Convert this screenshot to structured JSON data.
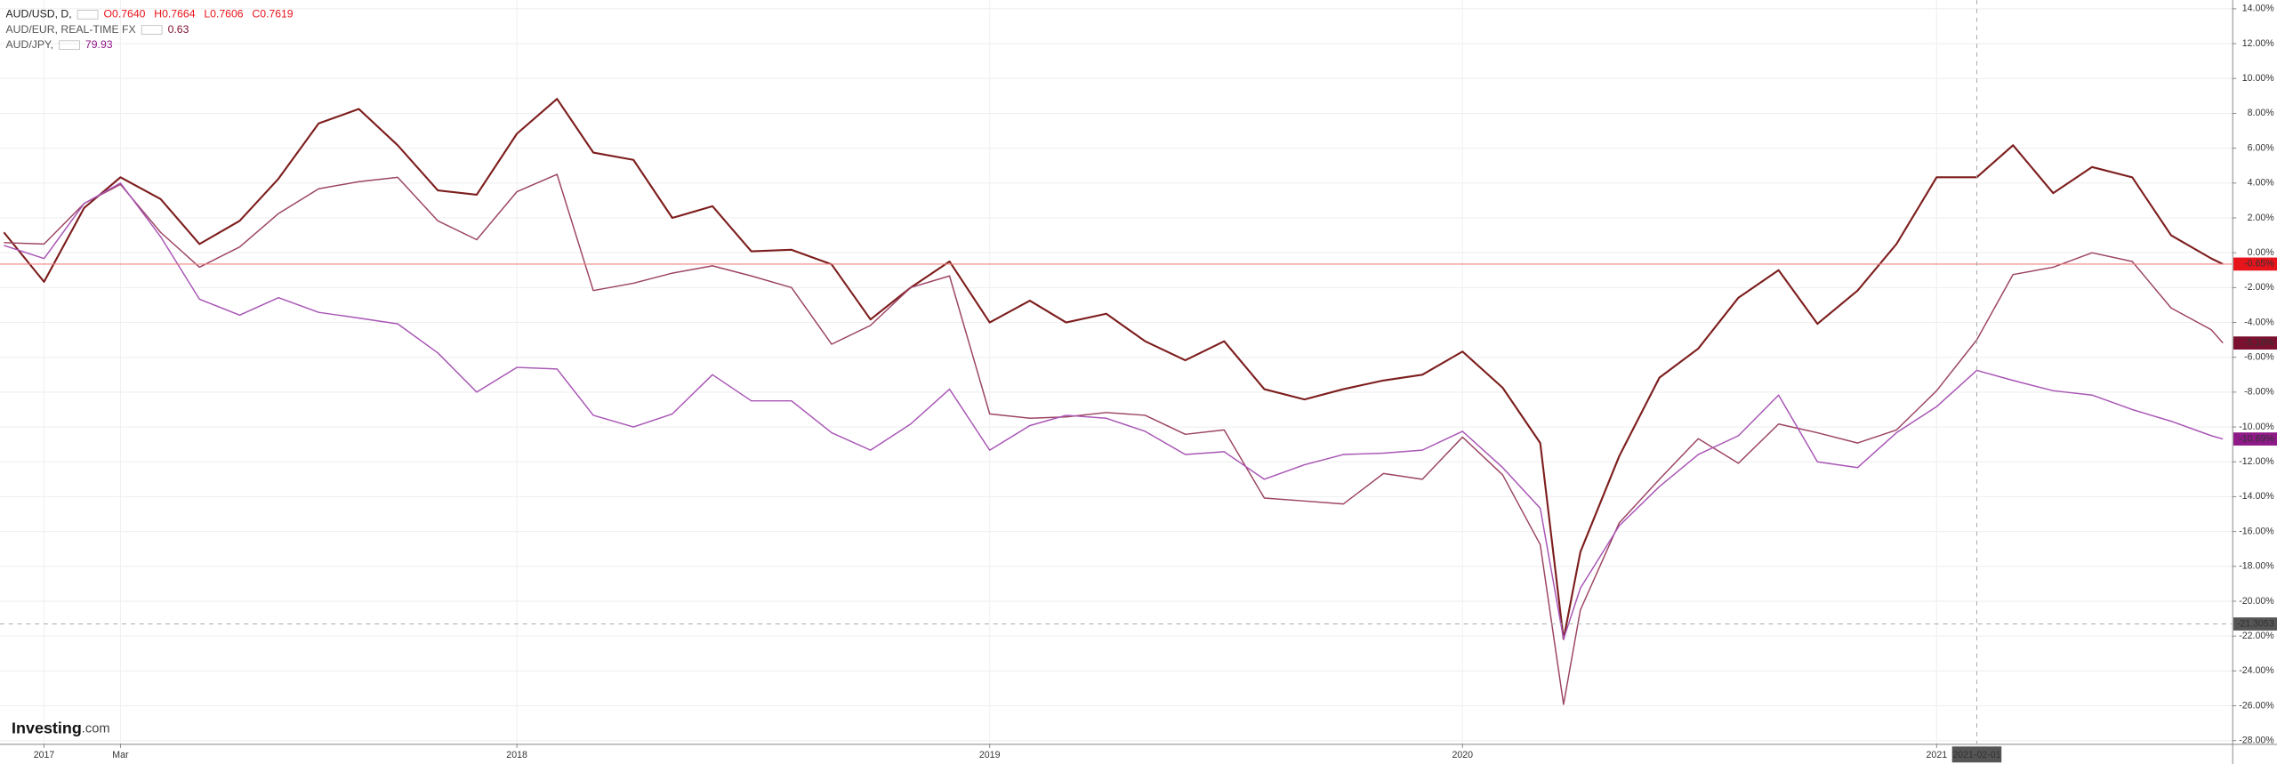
{
  "chart_data": {
    "type": "line",
    "x": [
      "2016-12-01",
      "2017-01-01",
      "2017-02-01",
      "2017-03-01",
      "2017-04-01",
      "2017-05-01",
      "2017-06-01",
      "2017-07-01",
      "2017-08-01",
      "2017-09-01",
      "2017-10-01",
      "2017-11-01",
      "2017-12-01",
      "2018-01-01",
      "2018-02-01",
      "2018-03-01",
      "2018-04-01",
      "2018-05-01",
      "2018-06-01",
      "2018-07-01",
      "2018-08-01",
      "2018-09-01",
      "2018-10-01",
      "2018-11-01",
      "2018-12-01",
      "2019-01-01",
      "2019-02-01",
      "2019-03-01",
      "2019-04-01",
      "2019-05-01",
      "2019-06-01",
      "2019-07-01",
      "2019-08-01",
      "2019-09-01",
      "2019-10-01",
      "2019-11-01",
      "2019-12-01",
      "2020-01-01",
      "2020-02-01",
      "2020-03-01",
      "2020-03-19",
      "2020-04-01",
      "2020-05-01",
      "2020-06-01",
      "2020-07-01",
      "2020-08-01",
      "2020-09-01",
      "2020-10-01",
      "2020-11-01",
      "2020-12-01",
      "2021-01-01",
      "2021-02-01",
      "2021-03-01",
      "2021-04-01",
      "2021-05-01",
      "2021-06-01",
      "2021-07-01",
      "2021-08-01",
      "2021-08-10"
    ],
    "xlim": [
      "2016-11-28",
      "2021-08-17"
    ],
    "xticks": [
      {
        "value": "2017-01-01",
        "label": "2017"
      },
      {
        "value": "2017-03-01",
        "label": "Mar"
      },
      {
        "value": "2018-01-01",
        "label": "2018"
      },
      {
        "value": "2019-01-01",
        "label": "2019"
      },
      {
        "value": "2020-01-01",
        "label": "2020"
      },
      {
        "value": "2021-01-01",
        "label": "2021"
      }
    ],
    "ylim": [
      -28.17,
      14.5
    ],
    "yticks": [
      {
        "value": 14,
        "label": "14.00%"
      },
      {
        "value": 12,
        "label": "12.00%"
      },
      {
        "value": 10,
        "label": "10.00%"
      },
      {
        "value": 8,
        "label": "8.00%"
      },
      {
        "value": 6,
        "label": "6.00%"
      },
      {
        "value": 4,
        "label": "4.00%"
      },
      {
        "value": 2,
        "label": "2.00%"
      },
      {
        "value": 0,
        "label": "0.00%"
      },
      {
        "value": -2,
        "label": "-2.00%"
      },
      {
        "value": -4,
        "label": "-4.00%"
      },
      {
        "value": -6,
        "label": "-6.00%"
      },
      {
        "value": -8,
        "label": "-8.00%"
      },
      {
        "value": -10,
        "label": "-10.00%"
      },
      {
        "value": -12,
        "label": "-12.00%"
      },
      {
        "value": -14,
        "label": "-14.00%"
      },
      {
        "value": -16,
        "label": "-16.00%"
      },
      {
        "value": -18,
        "label": "-18.00%"
      },
      {
        "value": -20,
        "label": "-20.00%"
      },
      {
        "value": -22,
        "label": "-22.00%"
      },
      {
        "value": -24,
        "label": "-24.00%"
      },
      {
        "value": -26,
        "label": "-26.00%"
      },
      {
        "value": -28,
        "label": "-28.00%"
      }
    ],
    "grid": true,
    "crosshair": {
      "x": "2021-02-01",
      "y": {
        "value": -21.3053,
        "label": "-21.3053"
      }
    },
    "watermark": [
      "Investing",
      ".com"
    ],
    "series": [
      {
        "name": "AUD/USD, D,",
        "color": "#7d1d1d",
        "label_color": "#e8141c",
        "quote": [
          "O0.7640",
          "H0.7664",
          "L0.7606",
          "C0.7619"
        ],
        "last": {
          "value": -0.65,
          "label": "-0.65%"
        },
        "values": [
          1.17,
          -1.67,
          2.58,
          4.33,
          3.08,
          0.5,
          1.83,
          4.25,
          7.42,
          8.25,
          6.17,
          3.58,
          3.33,
          6.83,
          8.83,
          5.75,
          5.33,
          2.0,
          2.67,
          0.08,
          0.17,
          -0.67,
          -3.83,
          -2.0,
          -0.5,
          -4.0,
          -2.75,
          -4.0,
          -3.5,
          -5.08,
          -6.17,
          -5.08,
          -7.83,
          -8.42,
          -7.83,
          -7.33,
          -7.0,
          -5.67,
          -7.75,
          -10.92,
          -22.17,
          -17.17,
          -11.67,
          -7.17,
          -5.5,
          -2.58,
          -1.0,
          -4.08,
          -2.17,
          0.5,
          4.33,
          4.33,
          6.17,
          3.42,
          4.92,
          4.33,
          1.0,
          -0.33,
          -0.65
        ]
      },
      {
        "name": "AUD/EUR, REAL-TIME FX",
        "color": "#9b4462",
        "label_color": "#7b1030",
        "quote": [
          "0.63"
        ],
        "last": {
          "value": -5.18,
          "label": "-5.18%"
        },
        "values": [
          0.58,
          0.5,
          2.83,
          3.92,
          1.17,
          -0.83,
          0.33,
          2.25,
          3.67,
          4.08,
          4.33,
          1.83,
          0.75,
          3.5,
          4.5,
          -2.17,
          -1.75,
          -1.17,
          -0.75,
          -1.33,
          -2.0,
          -5.25,
          -4.17,
          -2.0,
          -1.33,
          -9.25,
          -9.5,
          -9.42,
          -9.17,
          -9.33,
          -10.42,
          -10.17,
          -14.08,
          -14.25,
          -14.42,
          -12.67,
          -13.0,
          -10.58,
          -12.75,
          -16.75,
          -25.92,
          -20.5,
          -15.5,
          -13.0,
          -10.67,
          -12.08,
          -9.83,
          -10.33,
          -10.92,
          -10.17,
          -7.92,
          -5.0,
          -1.25,
          -0.83,
          0.0,
          -0.5,
          -3.17,
          -4.42,
          -5.18
        ]
      },
      {
        "name": "AUD/JPY,",
        "color": "#a855b5",
        "label_color": "#8e1a88",
        "quote": [
          "79.93"
        ],
        "last": {
          "value": -10.69,
          "label": "-10.69%"
        },
        "values": [
          0.42,
          -0.33,
          2.83,
          4.0,
          0.92,
          -2.67,
          -3.58,
          -2.58,
          -3.42,
          -3.75,
          -4.08,
          -5.75,
          -8.0,
          -6.58,
          -6.67,
          -9.33,
          -10.0,
          -9.25,
          -7.0,
          -8.5,
          -8.5,
          -10.33,
          -11.33,
          -9.83,
          -7.83,
          -11.33,
          -9.92,
          -9.33,
          -9.5,
          -10.25,
          -11.58,
          -11.42,
          -13.0,
          -12.17,
          -11.58,
          -11.5,
          -11.33,
          -10.25,
          -12.33,
          -14.67,
          -22.17,
          -19.25,
          -15.67,
          -13.42,
          -11.58,
          -10.5,
          -8.17,
          -12.0,
          -12.33,
          -10.33,
          -8.83,
          -6.75,
          -7.33,
          -7.92,
          -8.17,
          -9.0,
          -9.67,
          -10.5,
          -10.69
        ]
      }
    ]
  }
}
